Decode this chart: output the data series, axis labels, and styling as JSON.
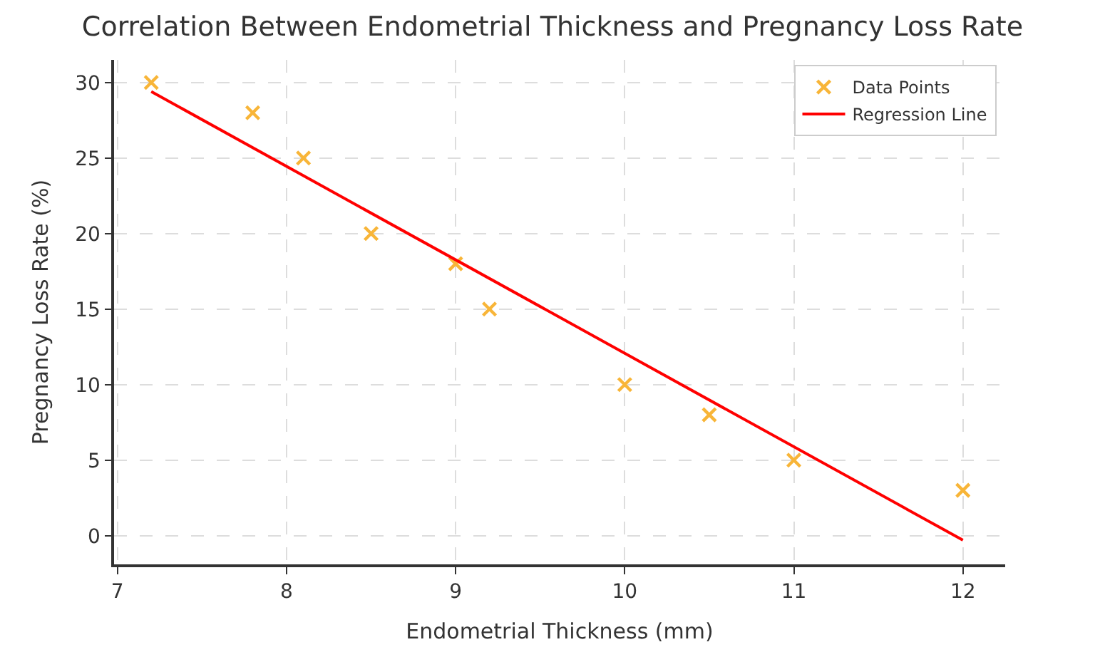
{
  "chart_data": {
    "type": "scatter",
    "title": "Correlation Between Endometrial Thickness and Pregnancy Loss Rate",
    "xlabel": "Endometrial Thickness (mm)",
    "ylabel": "Pregnancy Loss Rate (%)",
    "series": [
      {
        "name": "Data Points",
        "marker": "cross",
        "color": "#f8b538",
        "x": [
          7.2,
          7.8,
          8.1,
          8.5,
          9.0,
          9.2,
          10.0,
          10.5,
          11.0,
          12.0
        ],
        "values": [
          30,
          28,
          25,
          20,
          18,
          15,
          10,
          8,
          5,
          3
        ]
      },
      {
        "name": "Regression Line",
        "type": "line",
        "marker": "none",
        "line_style": "solid",
        "color": "#ff0000",
        "x": [
          7.2,
          12.0
        ],
        "values": [
          29.4,
          -0.3
        ]
      }
    ],
    "xlim": [
      6.98,
      12.25
    ],
    "ylim": [
      -1.9,
      31.5
    ],
    "xticks": [
      7,
      8,
      9,
      10,
      11,
      12
    ],
    "yticks": [
      0,
      5,
      10,
      15,
      20,
      25,
      30
    ],
    "grid": true,
    "legend": "top right"
  }
}
